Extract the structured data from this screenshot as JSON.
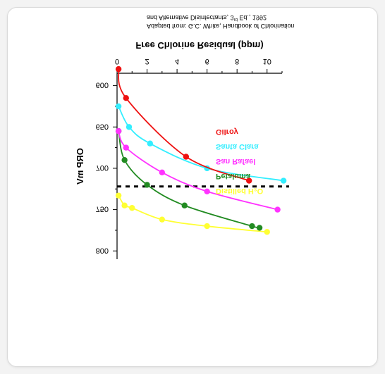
{
  "chart_data": {
    "type": "line",
    "ylabel": "ORP mV",
    "xlabel": "Free Chlorine Residual (ppm)",
    "xlim": [
      0,
      11
    ],
    "ylim": [
      585,
      810
    ],
    "x_ticks": [
      0,
      2,
      4,
      6,
      8,
      10
    ],
    "y_ticks": [
      600,
      650,
      700,
      750,
      800
    ],
    "y_tick_labels": [
      "600",
      "650",
      "700",
      "750",
      "800"
    ],
    "grid": false,
    "threshold": 722,
    "series": [
      {
        "name": "Distilled H₂O",
        "color": "#ffff33",
        "x": [
          0.1,
          0.5,
          1.0,
          3.0,
          6.0,
          10.0
        ],
        "y": [
          733,
          745,
          748,
          762,
          770,
          777
        ]
      },
      {
        "name": "Petaluma",
        "color": "#228b22",
        "x": [
          0.1,
          0.5,
          2.0,
          4.5,
          9.0,
          9.5
        ],
        "y": [
          655,
          690,
          720,
          745,
          770,
          772
        ]
      },
      {
        "name": "San Rafael",
        "color": "#ff33ff",
        "x": [
          0.1,
          0.6,
          3.0,
          6.0,
          10.7
        ],
        "y": [
          655,
          675,
          705,
          728,
          750
        ]
      },
      {
        "name": "Santa Clara",
        "color": "#33eeff",
        "x": [
          0.1,
          0.8,
          2.2,
          6.0,
          11.1
        ],
        "y": [
          625,
          650,
          670,
          700,
          715
        ]
      },
      {
        "name": "Gilroy",
        "color": "#ee1111",
        "x": [
          0.1,
          0.6,
          4.6,
          8.8
        ],
        "y": [
          580,
          615,
          686,
          715
        ]
      }
    ],
    "legend_placement": "center-right"
  },
  "caption": {
    "line1": "Adapted from:  G.C. White, Handbook of Chlorination",
    "line2": "and Alternative Disinfectants, 3",
    "line2_sup": "rd",
    "line2_tail": " Ed., 1992"
  }
}
